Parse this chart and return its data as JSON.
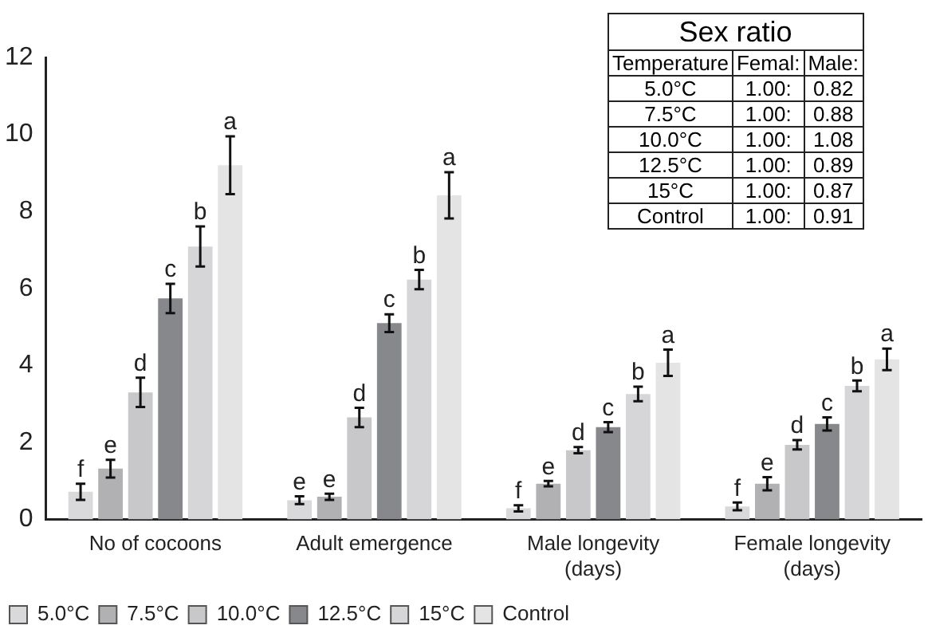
{
  "chart_data": {
    "type": "bar",
    "categories": [
      "No of cocoons",
      "Adult emergence",
      "Male longevity (days)",
      "Female longevity (days)"
    ],
    "series": [
      {
        "name": "5.0°C",
        "color": "#d9d9db",
        "values": [
          0.72,
          0.5,
          0.29,
          0.34
        ],
        "errors": [
          0.21,
          0.1,
          0.08,
          0.1
        ],
        "value_labels": [
          "f",
          "e",
          "f",
          "f"
        ]
      },
      {
        "name": "7.5°C",
        "color": "#b1b1b4",
        "values": [
          1.32,
          0.59,
          0.93,
          0.93
        ],
        "errors": [
          0.23,
          0.08,
          0.07,
          0.17
        ],
        "value_labels": [
          "e",
          "e",
          "e",
          "e"
        ]
      },
      {
        "name": "10.0°C",
        "color": "#c8c8ca",
        "values": [
          3.3,
          2.65,
          1.8,
          1.94
        ],
        "errors": [
          0.38,
          0.25,
          0.08,
          0.12
        ],
        "value_labels": [
          "d",
          "d",
          "d",
          "d"
        ]
      },
      {
        "name": "12.5°C",
        "color": "#87888b",
        "values": [
          5.74,
          5.1,
          2.4,
          2.48
        ],
        "errors": [
          0.38,
          0.23,
          0.13,
          0.17
        ],
        "value_labels": [
          "c",
          "c",
          "c",
          "c"
        ]
      },
      {
        "name": "15°C",
        "color": "#d6d6d8",
        "values": [
          7.09,
          6.23,
          3.26,
          3.47
        ],
        "errors": [
          0.52,
          0.25,
          0.19,
          0.14
        ],
        "value_labels": [
          "b",
          "b",
          "b",
          "b"
        ]
      },
      {
        "name": "Control",
        "color": "#e4e4e5",
        "values": [
          9.2,
          8.42,
          4.07,
          4.16
        ],
        "errors": [
          0.75,
          0.6,
          0.34,
          0.28
        ],
        "value_labels": [
          "a",
          "a",
          "a",
          "a"
        ]
      }
    ],
    "ylim": [
      0,
      12
    ],
    "yticks": [
      0,
      2,
      4,
      6,
      8,
      10,
      12
    ],
    "grid": false,
    "legend": "bottom left",
    "annotations": [
      "Sex ratio",
      "Temperature",
      "Femal:",
      "Male:",
      "5.0°C",
      "1.00:",
      "0.82",
      "7.5°C",
      "1.00:",
      "0.88",
      "10.0°C",
      "1.00:",
      "1.08",
      "12.5°C",
      "1.00:",
      "0.89",
      "15°C",
      "1.00:",
      "0.87",
      "Control",
      "1.00:",
      "0.91"
    ]
  }
}
